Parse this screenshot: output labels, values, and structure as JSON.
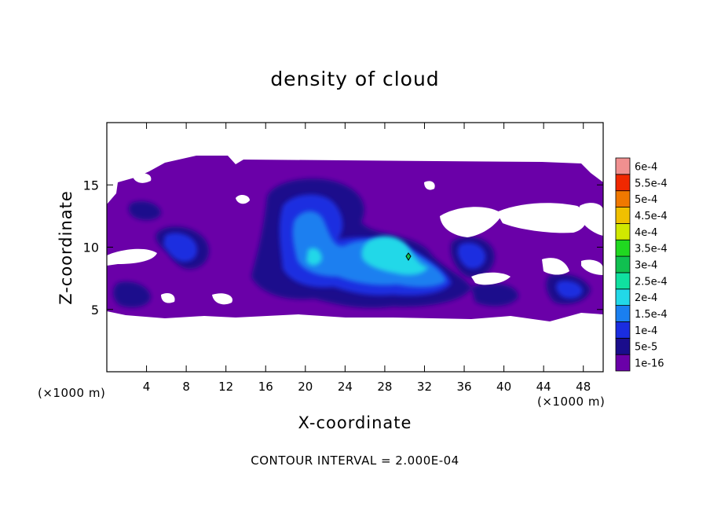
{
  "chart_data": {
    "type": "heatmap",
    "title": "density of cloud",
    "xlabel": "X-coordinate",
    "ylabel": "Z-coordinate",
    "x_unit": "(×1000 m)",
    "z_unit": "(×1000 m)",
    "xlim": [
      0,
      50
    ],
    "ylim": [
      0,
      20
    ],
    "x_ticks": [
      4,
      8,
      12,
      16,
      20,
      24,
      28,
      32,
      36,
      40,
      44,
      48
    ],
    "y_ticks": [
      5,
      10,
      15
    ],
    "grid": false,
    "colorbar": {
      "position": "right",
      "labels": [
        "1e-16",
        "5e-5",
        "1e-4",
        "1.5e-4",
        "2e-4",
        "2.5e-4",
        "3e-4",
        "3.5e-4",
        "4e-4",
        "4.5e-4",
        "5e-4",
        "5.5e-4",
        "6e-4"
      ],
      "colors": [
        "#6a00a8",
        "#1a0d8c",
        "#1a2de0",
        "#1a7ff0",
        "#22d8e8",
        "#10e0a0",
        "#10c050",
        "#20d820",
        "#d0e800",
        "#f0c000",
        "#f07800",
        "#f02800",
        "#f09090"
      ]
    },
    "field": {
      "extent_x": [
        0,
        50
      ],
      "extent_z": [
        4.5,
        17
      ],
      "max_value": 0.00019,
      "max_location": [
        30,
        9
      ]
    },
    "contour_interval": "2.000E-04"
  },
  "footer": "CONTOUR INTERVAL = 2.000E-04"
}
